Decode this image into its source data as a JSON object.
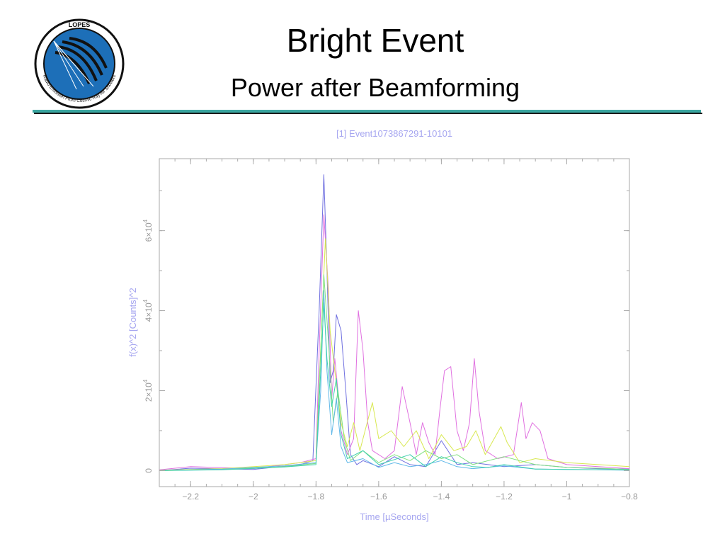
{
  "slide": {
    "title": "Bright Event",
    "subtitle": "Power after Beamforming",
    "logo": {
      "ring_top": "LOPES",
      "ring_bottom": "Radio Emission From Cosmic Ray Air Showers"
    }
  },
  "colors": {
    "accent_rule": "#3aa6a0",
    "axis_text": "#9a9a9a",
    "plot_title_text": "#a6a6f0",
    "logo_blue": "#1d6fb8"
  },
  "chart_data": {
    "type": "line",
    "title": "[1] Event1073867291-10101",
    "xlabel": "Time [µSeconds]",
    "ylabel": "f(x)^2 [Counts]^2",
    "xlim": [
      -2.3,
      -0.8
    ],
    "ylim": [
      -4000,
      78000
    ],
    "grid": false,
    "x_ticks": [
      {
        "value": -2.2,
        "label": "−2.2"
      },
      {
        "value": -2.0,
        "label": "−2"
      },
      {
        "value": -1.8,
        "label": "−1.8"
      },
      {
        "value": -1.6,
        "label": "−1.6"
      },
      {
        "value": -1.4,
        "label": "−1.4"
      },
      {
        "value": -1.2,
        "label": "−1.2"
      },
      {
        "value": -1.0,
        "label": "−1"
      },
      {
        "value": -0.8,
        "label": "−0.8"
      }
    ],
    "y_ticks": [
      {
        "value": 0,
        "base": "0",
        "exp": ""
      },
      {
        "value": 20000,
        "base": "2×10",
        "exp": "4"
      },
      {
        "value": 40000,
        "base": "4×10",
        "exp": "4"
      },
      {
        "value": 60000,
        "base": "6×10",
        "exp": "4"
      }
    ],
    "series": [
      {
        "color": "#7070e0",
        "points": [
          [
            -2.3,
            0
          ],
          [
            -2.2,
            600
          ],
          [
            -2.0,
            300
          ],
          [
            -1.85,
            1500
          ],
          [
            -1.81,
            2500
          ],
          [
            -1.79,
            40000
          ],
          [
            -1.775,
            74000
          ],
          [
            -1.765,
            50000
          ],
          [
            -1.755,
            22000
          ],
          [
            -1.745,
            25000
          ],
          [
            -1.735,
            39000
          ],
          [
            -1.72,
            35000
          ],
          [
            -1.705,
            20000
          ],
          [
            -1.69,
            4000
          ],
          [
            -1.67,
            1500
          ],
          [
            -1.65,
            2500
          ],
          [
            -1.6,
            1000
          ],
          [
            -1.55,
            3500
          ],
          [
            -1.5,
            1500
          ],
          [
            -1.45,
            1000
          ],
          [
            -1.4,
            7500
          ],
          [
            -1.35,
            1500
          ],
          [
            -1.3,
            2000
          ],
          [
            -1.2,
            1000
          ],
          [
            -1.1,
            1500
          ],
          [
            -1.0,
            800
          ],
          [
            -0.9,
            500
          ],
          [
            -0.8,
            400
          ]
        ]
      },
      {
        "color": "#e070e0",
        "points": [
          [
            -2.3,
            200
          ],
          [
            -2.2,
            1000
          ],
          [
            -2.0,
            500
          ],
          [
            -1.85,
            2000
          ],
          [
            -1.8,
            3000
          ],
          [
            -1.79,
            30000
          ],
          [
            -1.775,
            64000
          ],
          [
            -1.76,
            45000
          ],
          [
            -1.75,
            18000
          ],
          [
            -1.74,
            28000
          ],
          [
            -1.73,
            20000
          ],
          [
            -1.72,
            10000
          ],
          [
            -1.7,
            4000
          ],
          [
            -1.68,
            8000
          ],
          [
            -1.665,
            40000
          ],
          [
            -1.65,
            30000
          ],
          [
            -1.635,
            12000
          ],
          [
            -1.62,
            5000
          ],
          [
            -1.58,
            3000
          ],
          [
            -1.55,
            5000
          ],
          [
            -1.525,
            21000
          ],
          [
            -1.5,
            12000
          ],
          [
            -1.48,
            4000
          ],
          [
            -1.46,
            12000
          ],
          [
            -1.44,
            7000
          ],
          [
            -1.42,
            4000
          ],
          [
            -1.405,
            15000
          ],
          [
            -1.39,
            25000
          ],
          [
            -1.37,
            26000
          ],
          [
            -1.35,
            10000
          ],
          [
            -1.33,
            5000
          ],
          [
            -1.31,
            12000
          ],
          [
            -1.295,
            28000
          ],
          [
            -1.28,
            15000
          ],
          [
            -1.26,
            5000
          ],
          [
            -1.22,
            3000
          ],
          [
            -1.17,
            4000
          ],
          [
            -1.145,
            17000
          ],
          [
            -1.13,
            8000
          ],
          [
            -1.11,
            12000
          ],
          [
            -1.085,
            10000
          ],
          [
            -1.06,
            3000
          ],
          [
            -1.0,
            1500
          ],
          [
            -0.9,
            1000
          ],
          [
            -0.8,
            500
          ]
        ]
      },
      {
        "color": "#d8e850",
        "points": [
          [
            -2.3,
            100
          ],
          [
            -2.1,
            500
          ],
          [
            -1.9,
            1500
          ],
          [
            -1.8,
            2500
          ],
          [
            -1.78,
            40000
          ],
          [
            -1.77,
            58000
          ],
          [
            -1.755,
            35000
          ],
          [
            -1.74,
            25000
          ],
          [
            -1.72,
            12000
          ],
          [
            -1.7,
            6000
          ],
          [
            -1.68,
            12000
          ],
          [
            -1.66,
            5000
          ],
          [
            -1.62,
            17000
          ],
          [
            -1.6,
            8000
          ],
          [
            -1.56,
            10000
          ],
          [
            -1.52,
            6000
          ],
          [
            -1.48,
            10000
          ],
          [
            -1.44,
            3000
          ],
          [
            -1.4,
            9000
          ],
          [
            -1.36,
            5000
          ],
          [
            -1.32,
            6000
          ],
          [
            -1.29,
            10000
          ],
          [
            -1.26,
            4000
          ],
          [
            -1.21,
            11000
          ],
          [
            -1.19,
            7000
          ],
          [
            -1.15,
            2000
          ],
          [
            -1.1,
            3000
          ],
          [
            -1.0,
            2000
          ],
          [
            -0.9,
            1500
          ],
          [
            -0.8,
            1000
          ]
        ]
      },
      {
        "color": "#80e080",
        "points": [
          [
            -2.3,
            0
          ],
          [
            -2.1,
            300
          ],
          [
            -1.9,
            1000
          ],
          [
            -1.8,
            1800
          ],
          [
            -1.785,
            30000
          ],
          [
            -1.775,
            49000
          ],
          [
            -1.76,
            32000
          ],
          [
            -1.745,
            12000
          ],
          [
            -1.73,
            20000
          ],
          [
            -1.71,
            8000
          ],
          [
            -1.69,
            2500
          ],
          [
            -1.65,
            5000
          ],
          [
            -1.6,
            2000
          ],
          [
            -1.55,
            4000
          ],
          [
            -1.5,
            2500
          ],
          [
            -1.45,
            5000
          ],
          [
            -1.4,
            3000
          ],
          [
            -1.35,
            4000
          ],
          [
            -1.3,
            1500
          ],
          [
            -1.2,
            3500
          ],
          [
            -1.1,
            1500
          ],
          [
            -1.0,
            800
          ],
          [
            -0.9,
            600
          ],
          [
            -0.8,
            300
          ]
        ]
      },
      {
        "color": "#60b8e8",
        "points": [
          [
            -2.3,
            0
          ],
          [
            -2.1,
            400
          ],
          [
            -1.9,
            1200
          ],
          [
            -1.8,
            2000
          ],
          [
            -1.785,
            20000
          ],
          [
            -1.775,
            45000
          ],
          [
            -1.765,
            25000
          ],
          [
            -1.75,
            9000
          ],
          [
            -1.735,
            18000
          ],
          [
            -1.72,
            6000
          ],
          [
            -1.7,
            2000
          ],
          [
            -1.65,
            3000
          ],
          [
            -1.6,
            800
          ],
          [
            -1.55,
            2000
          ],
          [
            -1.5,
            1000
          ],
          [
            -1.45,
            1500
          ],
          [
            -1.4,
            2500
          ],
          [
            -1.35,
            1000
          ],
          [
            -1.3,
            500
          ],
          [
            -1.2,
            1200
          ],
          [
            -1.1,
            400
          ],
          [
            -1.0,
            300
          ],
          [
            -0.9,
            200
          ],
          [
            -0.8,
            100
          ]
        ]
      },
      {
        "color": "#40d0b0",
        "points": [
          [
            -2.3,
            0
          ],
          [
            -2.1,
            200
          ],
          [
            -1.9,
            900
          ],
          [
            -1.8,
            1500
          ],
          [
            -1.785,
            25000
          ],
          [
            -1.775,
            42000
          ],
          [
            -1.765,
            28000
          ],
          [
            -1.75,
            16000
          ],
          [
            -1.735,
            23000
          ],
          [
            -1.72,
            9000
          ],
          [
            -1.7,
            3000
          ],
          [
            -1.65,
            5000
          ],
          [
            -1.6,
            1500
          ],
          [
            -1.5,
            4000
          ],
          [
            -1.45,
            1000
          ],
          [
            -1.4,
            3500
          ],
          [
            -1.35,
            2000
          ],
          [
            -1.3,
            1000
          ],
          [
            -1.25,
            800
          ],
          [
            -1.2,
            1500
          ],
          [
            -1.1,
            400
          ],
          [
            -1.0,
            300
          ],
          [
            -0.8,
            200
          ]
        ]
      }
    ]
  }
}
